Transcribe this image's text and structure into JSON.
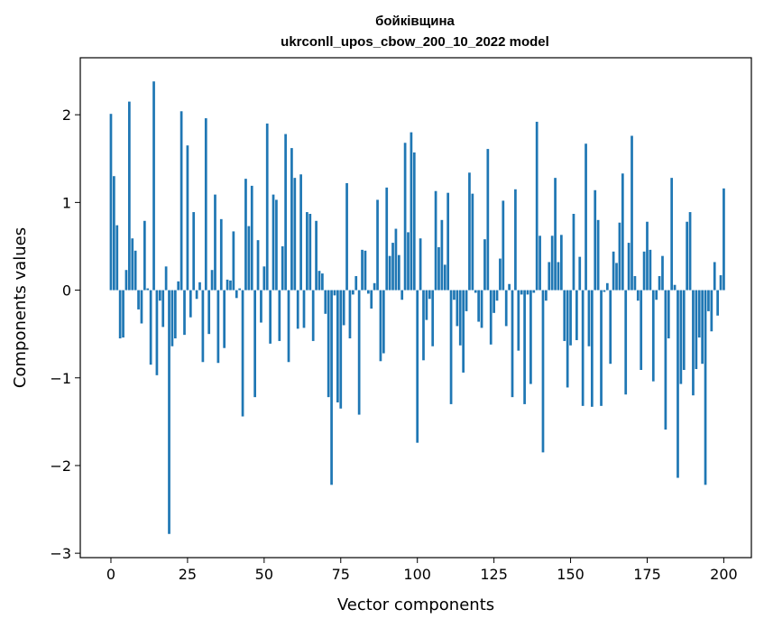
{
  "chart_data": {
    "type": "bar",
    "title_line1": "бойківщина",
    "title_line2": "ukrconll_upos_cbow_200_10_2022 model",
    "xlabel": "Vector components",
    "ylabel": "Components values",
    "xlim": [
      -10,
      209
    ],
    "ylim": [
      -3.05,
      2.65
    ],
    "xticks": [
      0,
      25,
      50,
      75,
      100,
      125,
      150,
      175,
      200
    ],
    "xtick_labels": [
      "0",
      "25",
      "50",
      "75",
      "100",
      "125",
      "150",
      "175",
      "200"
    ],
    "yticks": [
      -3,
      -2,
      -1,
      0,
      1,
      2
    ],
    "ytick_labels": [
      "−3",
      "−2",
      "−1",
      "0",
      "1",
      "2"
    ],
    "bar_color": "#1f77b4",
    "grid": false,
    "values": [
      2.01,
      1.3,
      0.74,
      -0.55,
      -0.54,
      0.23,
      2.15,
      0.59,
      0.45,
      -0.22,
      -0.38,
      0.79,
      0.02,
      -0.85,
      2.38,
      -0.97,
      -0.12,
      -0.42,
      0.27,
      -2.78,
      -0.64,
      -0.55,
      0.1,
      2.04,
      -0.51,
      1.65,
      -0.31,
      0.89,
      -0.1,
      0.09,
      -0.82,
      1.96,
      -0.5,
      0.23,
      1.09,
      -0.83,
      0.81,
      -0.66,
      0.12,
      0.11,
      0.67,
      -0.09,
      0.02,
      -1.44,
      1.27,
      0.73,
      1.19,
      -1.22,
      0.57,
      -0.37,
      0.27,
      1.9,
      -0.61,
      1.09,
      1.03,
      -0.58,
      0.5,
      1.78,
      -0.82,
      1.62,
      1.28,
      -0.44,
      1.32,
      -0.43,
      0.89,
      0.87,
      -0.58,
      0.79,
      0.22,
      0.19,
      -0.27,
      -1.22,
      -2.22,
      -0.06,
      -1.28,
      -1.35,
      -0.4,
      1.22,
      -0.55,
      -0.05,
      0.16,
      -1.42,
      0.46,
      0.45,
      -0.04,
      -0.21,
      0.08,
      1.03,
      -0.81,
      -0.72,
      1.17,
      0.39,
      0.54,
      0.7,
      0.4,
      -0.11,
      1.68,
      0.66,
      1.8,
      1.57,
      -1.74,
      0.59,
      -0.8,
      -0.34,
      -0.1,
      -0.64,
      1.13,
      0.49,
      0.8,
      0.29,
      1.11,
      -1.3,
      -0.11,
      -0.41,
      -0.63,
      -0.94,
      -0.24,
      1.34,
      1.1,
      -0.03,
      -0.36,
      -0.43,
      0.58,
      1.61,
      -0.62,
      -0.26,
      -0.12,
      0.36,
      1.02,
      -0.41,
      0.07,
      -1.22,
      1.15,
      -0.69,
      -0.05,
      -1.3,
      -0.05,
      -1.07,
      -0.03,
      1.92,
      0.62,
      -1.85,
      -0.12,
      0.32,
      0.62,
      1.28,
      0.32,
      0.63,
      -0.58,
      -1.11,
      -0.63,
      0.87,
      -0.57,
      0.38,
      -1.32,
      1.67,
      -0.64,
      -1.33,
      1.14,
      0.8,
      -1.32,
      -0.02,
      0.08,
      -0.84,
      0.44,
      0.31,
      0.77,
      1.33,
      -1.19,
      0.54,
      1.76,
      0.16,
      -0.12,
      -0.91,
      0.44,
      0.78,
      0.46,
      -1.04,
      -0.11,
      0.16,
      0.39,
      -1.59,
      -0.55,
      1.28,
      0.06,
      -2.14,
      -1.07,
      -0.91,
      0.78,
      0.89,
      -1.2,
      -0.9,
      -0.54,
      -0.84,
      -2.22,
      -0.24,
      -0.47,
      0.32,
      -0.29,
      0.17,
      1.16
    ]
  }
}
